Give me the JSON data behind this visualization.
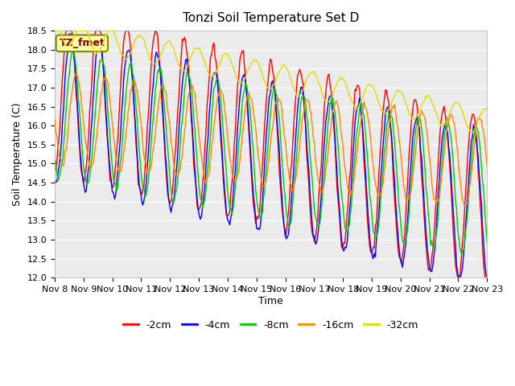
{
  "title": "Tonzi Soil Temperature Set D",
  "xlabel": "Time",
  "ylabel": "Soil Temperature (C)",
  "ylim": [
    12.0,
    18.5
  ],
  "colors": {
    "-2cm": "#ff0000",
    "-4cm": "#0000ff",
    "-8cm": "#00cc00",
    "-16cm": "#ff8800",
    "-32cm": "#dddd00"
  },
  "xtick_labels": [
    "Nov 8",
    "Nov 9",
    "Nov 10",
    "Nov 11",
    "Nov 12",
    "Nov 13",
    "Nov 14",
    "Nov 15",
    "Nov 16",
    "Nov 17",
    "Nov 18",
    "Nov 19",
    "Nov 20",
    "Nov 21",
    "Nov 22",
    "Nov 23"
  ],
  "legend_label": "TZ_fmet",
  "yticks": [
    12.0,
    12.5,
    13.0,
    13.5,
    14.0,
    14.5,
    15.0,
    15.5,
    16.0,
    16.5,
    17.0,
    17.5,
    18.0,
    18.5
  ]
}
